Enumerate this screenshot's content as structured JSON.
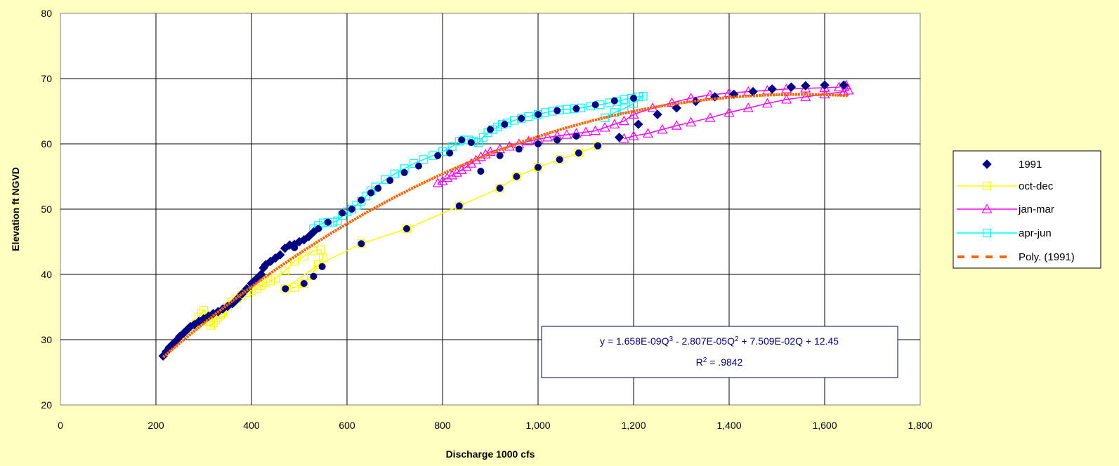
{
  "chart_data": {
    "type": "scatter",
    "xlabel": "Discharge 1000 cfs",
    "ylabel": "Elevation ft NGVD",
    "xlim": [
      0,
      1800
    ],
    "ylim": [
      20,
      80
    ],
    "xticks": [
      0,
      200,
      400,
      600,
      800,
      1000,
      1200,
      1400,
      1600,
      1800
    ],
    "xtick_labels": [
      "0",
      "200",
      "400",
      "600",
      "800",
      "1,000",
      "1,200",
      "1,400",
      "1,600",
      "1,800"
    ],
    "yticks": [
      20,
      30,
      40,
      50,
      60,
      70,
      80
    ],
    "ytick_labels": [
      "20",
      "30",
      "40",
      "50",
      "60",
      "70",
      "80"
    ],
    "grid": true,
    "legend_position": "right",
    "equation": {
      "line1_parts": [
        "y = 1.658E-09Q",
        "3",
        " - 2.807E-05Q",
        "2",
        " + 7.509E-02Q + 12.45"
      ],
      "line2_parts": [
        "R",
        "2",
        " = .9842"
      ]
    },
    "series": [
      {
        "name": "1991",
        "marker": "diamond",
        "color": "#000080",
        "line": false,
        "x": [
          215,
          222,
          228,
          235,
          242,
          250,
          258,
          265,
          272,
          280,
          290,
          300,
          310,
          320,
          330,
          340,
          350,
          360,
          370,
          380,
          390,
          400,
          410,
          420,
          425,
          430,
          440,
          450,
          460,
          470,
          480,
          490,
          500,
          510,
          520,
          530,
          1170,
          1210,
          1250,
          1290,
          1330,
          1370,
          1410,
          1450,
          1490,
          1530,
          1560,
          1600,
          1640
        ],
        "y": [
          27.5,
          28.2,
          28.8,
          29.3,
          29.8,
          30.5,
          31.0,
          31.5,
          32.0,
          32.3,
          32.8,
          33.2,
          33.6,
          34.0,
          34.3,
          34.7,
          35.1,
          35.5,
          36.2,
          37.0,
          37.8,
          38.6,
          39.3,
          40.0,
          41.0,
          41.5,
          42.0,
          42.5,
          43.0,
          44.0,
          44.5,
          44.6,
          45.0,
          45.3,
          45.8,
          46.5,
          61.0,
          63.0,
          64.5,
          65.5,
          66.5,
          67.2,
          67.6,
          68.0,
          68.4,
          68.7,
          68.9,
          69.0,
          69.0
        ]
      },
      {
        "name": "oct-dec",
        "marker": "square",
        "color": "#FFFF00",
        "line": true,
        "x": [
          270,
          280,
          285,
          290,
          295,
          300,
          305,
          310,
          315,
          320,
          325,
          330,
          335,
          340,
          350,
          360,
          370,
          380,
          390,
          400,
          410,
          420,
          430,
          440,
          450,
          470,
          490,
          510,
          530,
          545,
          550,
          540,
          525,
          510,
          490,
          470,
          540,
          630,
          725,
          835,
          920,
          955,
          1000,
          1045,
          1085,
          1125
        ],
        "y": [
          31.5,
          32.0,
          32.5,
          33.5,
          34.0,
          34.5,
          33.8,
          32.8,
          32.2,
          32.6,
          33.0,
          33.4,
          33.8,
          34.2,
          35.0,
          35.8,
          36.3,
          36.8,
          37.2,
          37.5,
          37.8,
          38.3,
          38.7,
          39.0,
          39.4,
          40.5,
          42.0,
          42.8,
          43.6,
          43.8,
          42.5,
          41.5,
          39.8,
          38.6,
          38.0,
          37.8,
          41.5,
          44.7,
          47.0,
          50.5,
          53.2,
          55.0,
          56.4,
          57.6,
          58.6,
          59.7
        ]
      },
      {
        "name": "jan-mar",
        "marker": "triangle",
        "color": "#FF00FF",
        "line": true,
        "x": [
          790,
          800,
          810,
          820,
          830,
          840,
          850,
          860,
          870,
          880,
          890,
          900,
          920,
          940,
          960,
          980,
          1000,
          1020,
          1040,
          1060,
          1080,
          1100,
          1120,
          1140,
          1160,
          1180,
          1200,
          1240,
          1280,
          1320,
          1360,
          1400,
          1440,
          1480,
          1520,
          1560,
          1600,
          1630,
          1645,
          1650,
          1640,
          1600,
          1560,
          1520,
          1480,
          1440,
          1400,
          1360,
          1320,
          1290,
          1260,
          1230,
          1200,
          1180
        ],
        "y": [
          54.0,
          54.3,
          54.8,
          55.2,
          55.6,
          56.0,
          56.5,
          57.0,
          57.5,
          58.0,
          58.4,
          58.8,
          59.2,
          59.6,
          60.0,
          60.4,
          60.7,
          61.0,
          61.2,
          61.4,
          61.6,
          61.8,
          62.0,
          62.5,
          63.0,
          63.5,
          64.5,
          65.5,
          66.3,
          67.0,
          67.5,
          67.8,
          68.0,
          68.2,
          68.4,
          68.5,
          68.6,
          68.7,
          69.0,
          68.2,
          68.0,
          67.6,
          67.2,
          66.8,
          66.2,
          65.5,
          64.8,
          64.0,
          63.3,
          62.8,
          62.2,
          61.6,
          61.2,
          60.8
        ]
      },
      {
        "name": "apr-jun",
        "marker": "square",
        "color": "#00FFFF",
        "line": true,
        "x": [
          530,
          540,
          550,
          560,
          570,
          580,
          590,
          600,
          610,
          620,
          630,
          640,
          650,
          660,
          680,
          700,
          720,
          740,
          760,
          780,
          800,
          820,
          835,
          845,
          855,
          865,
          875,
          885,
          895,
          905,
          915,
          925,
          935,
          950,
          965,
          980,
          1000,
          1015,
          1030,
          1045,
          1060,
          1075,
          1090,
          1110,
          1130,
          1150,
          1165,
          1180,
          1195,
          1210,
          1220,
          1200,
          1180,
          1160,
          1140
        ],
        "y": [
          47.0,
          47.5,
          47.9,
          48.0,
          48.0,
          48.2,
          49.0,
          49.6,
          50.0,
          50.6,
          51.2,
          52.0,
          52.8,
          53.4,
          54.5,
          55.4,
          56.2,
          57.0,
          57.6,
          58.2,
          58.8,
          59.6,
          60.4,
          60.6,
          60.6,
          60.4,
          60.2,
          61.0,
          61.7,
          62.2,
          62.6,
          63.0,
          63.2,
          63.6,
          63.9,
          64.2,
          64.5,
          64.8,
          65.0,
          65.2,
          65.3,
          65.4,
          65.5,
          65.8,
          66.0,
          66.3,
          66.5,
          66.8,
          67.0,
          67.2,
          67.3,
          66.2,
          65.4,
          64.8,
          64.0
        ]
      },
      {
        "name": "Poly. (1991)",
        "marker": "none",
        "color": "#FF6600",
        "line": true,
        "dashed": true,
        "fit": "poly3",
        "coefficients": [
          1.658e-09,
          -2.807e-05,
          0.07509,
          12.45
        ],
        "x_range": [
          215,
          1650
        ]
      }
    ]
  }
}
